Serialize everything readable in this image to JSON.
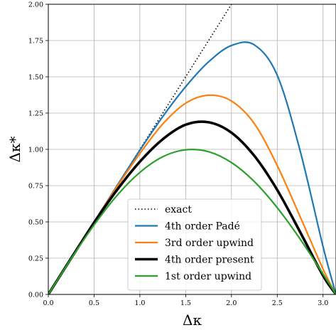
{
  "chart_data": {
    "type": "line",
    "xlabel": "Δκ",
    "ylabel": "Δκ*",
    "xlim": [
      0,
      3.1416
    ],
    "ylim": [
      0,
      2.0
    ],
    "xticks": [
      "0.0",
      "0.5",
      "1.0",
      "1.5",
      "2.0",
      "2.5",
      "3.0"
    ],
    "xtick_values": [
      0.0,
      0.5,
      1.0,
      1.5,
      2.0,
      2.5,
      3.0
    ],
    "yticks": [
      "0.00",
      "0.25",
      "0.50",
      "0.75",
      "1.00",
      "1.25",
      "1.50",
      "1.75",
      "2.00"
    ],
    "ytick_values": [
      0.0,
      0.25,
      0.5,
      0.75,
      1.0,
      1.25,
      1.5,
      1.75,
      2.0
    ],
    "grid": true,
    "legend_position": "lower-center",
    "x": [
      0.0,
      0.25,
      0.5,
      0.75,
      1.0,
      1.25,
      1.5,
      1.75,
      2.0,
      2.25,
      2.5,
      2.75,
      3.0,
      3.1416
    ],
    "series": [
      {
        "name": "exact",
        "color": "#000000",
        "style": "dotted",
        "x": [
          0.0,
          2.0
        ],
        "values": [
          0.0,
          2.0
        ]
      },
      {
        "name": "4th order Padé",
        "color": "#1f77b4",
        "style": "solid",
        "values": [
          0.0,
          0.25,
          0.5,
          0.749,
          0.994,
          1.226,
          1.432,
          1.603,
          1.716,
          1.72,
          1.51,
          0.99,
          0.33,
          0.0
        ]
      },
      {
        "name": "3rd order upwind",
        "color": "#ff7f0e",
        "style": "solid",
        "values": [
          0.0,
          0.25,
          0.499,
          0.742,
          0.971,
          1.175,
          1.318,
          1.373,
          1.333,
          1.177,
          0.888,
          0.536,
          0.175,
          0.0
        ]
      },
      {
        "name": "4th order present",
        "color": "#000000",
        "style": "solid-thick",
        "values": [
          0.0,
          0.25,
          0.495,
          0.72,
          0.915,
          1.07,
          1.17,
          1.187,
          1.115,
          0.955,
          0.72,
          0.43,
          0.13,
          0.0
        ]
      },
      {
        "name": "1st order upwind",
        "color": "#2ca02c",
        "style": "solid",
        "values": [
          0.0,
          0.247,
          0.479,
          0.682,
          0.841,
          0.949,
          0.997,
          0.984,
          0.909,
          0.778,
          0.598,
          0.382,
          0.141,
          0.0
        ]
      }
    ]
  }
}
